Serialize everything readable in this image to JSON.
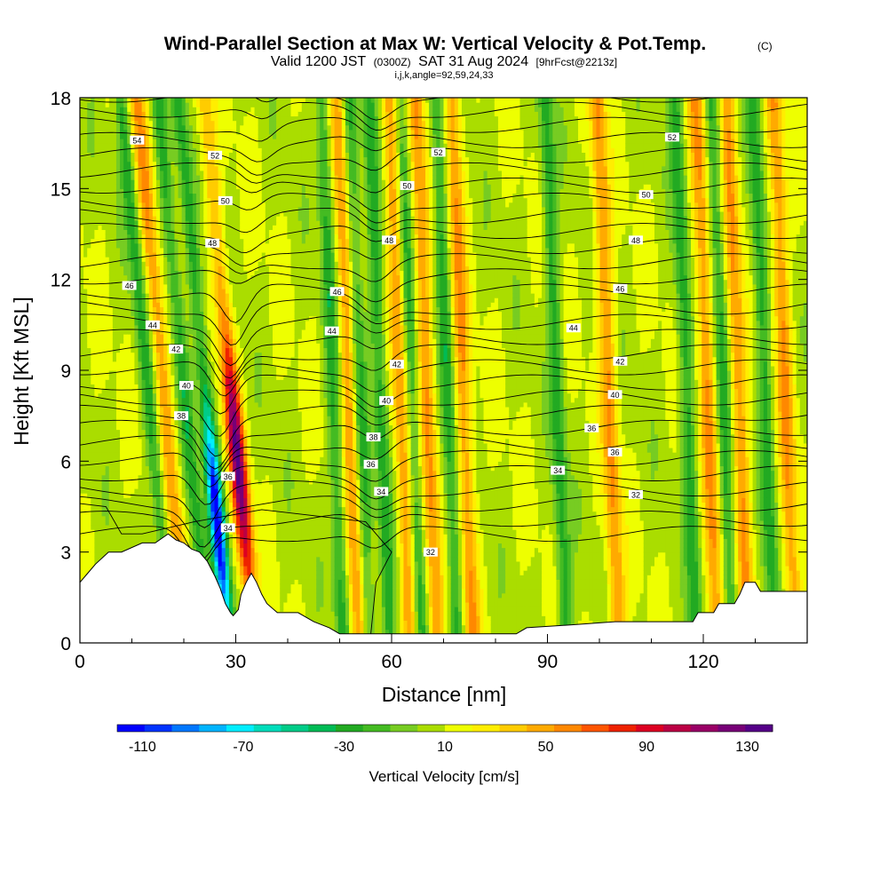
{
  "chart_data": {
    "type": "heatmap",
    "title": "Wind-Parallel Section at Max W: Vertical Velocity & Pot.Temp.",
    "title_mark": "(C)",
    "subtitle": {
      "valid_a": "Valid 1200 JST",
      "valid_b": "(0300Z)",
      "valid_c": "SAT 31 Aug 2024",
      "valid_d": "[9hrFcst@2213z]"
    },
    "subtitle2": "i,j,k,angle=92,59,24,33",
    "xlabel": "Distance [nm]",
    "ylabel": "Height [Kft MSL]",
    "xlim": [
      0,
      140
    ],
    "ylim": [
      0,
      18
    ],
    "x_ticks": [
      0,
      30,
      60,
      90,
      120
    ],
    "y_ticks": [
      0,
      3,
      6,
      9,
      12,
      15,
      18
    ],
    "colorbar": {
      "label": "Vertical Velocity [cm/s]",
      "min": -120,
      "max": 140,
      "tick_labels": [
        "-110",
        "-70",
        "-30",
        "10",
        "50",
        "90",
        "130"
      ],
      "tick_values": [
        -110,
        -70,
        -30,
        10,
        50,
        90,
        130
      ],
      "colors": [
        "#0000ff",
        "#0033ff",
        "#0077ff",
        "#00b4ff",
        "#00eeff",
        "#00ddbb",
        "#00cc88",
        "#00bb55",
        "#22aa22",
        "#44bb22",
        "#77cc22",
        "#aadd00",
        "#eeff00",
        "#ffee00",
        "#ffcc00",
        "#ffaa00",
        "#ff8800",
        "#ff5500",
        "#ee2200",
        "#dd0022",
        "#bb0044",
        "#990066",
        "#770077",
        "#550088"
      ]
    },
    "updraft_bands_x_nm": [
      19,
      32,
      53,
      63,
      68,
      75,
      103,
      122,
      128,
      137
    ],
    "downdraft_bands_x_nm": [
      16,
      23,
      27,
      50,
      55,
      59,
      65,
      72,
      93,
      118,
      125,
      133
    ],
    "theta_contour_labels_K": [
      {
        "label": "54",
        "x": 11,
        "y": 16.6
      },
      {
        "label": "52",
        "x": 26,
        "y": 16.1
      },
      {
        "label": "52",
        "x": 69,
        "y": 16.2
      },
      {
        "label": "52",
        "x": 114,
        "y": 16.7
      },
      {
        "label": "50",
        "x": 28,
        "y": 14.6
      },
      {
        "label": "50",
        "x": 63,
        "y": 15.1
      },
      {
        "label": "50",
        "x": 109,
        "y": 14.8
      },
      {
        "label": "48",
        "x": 25.5,
        "y": 13.2
      },
      {
        "label": "48",
        "x": 59.5,
        "y": 13.3
      },
      {
        "label": "48",
        "x": 107,
        "y": 13.3
      },
      {
        "label": "46",
        "x": 9.5,
        "y": 11.8
      },
      {
        "label": "46",
        "x": 49.5,
        "y": 11.6
      },
      {
        "label": "46",
        "x": 104,
        "y": 11.7
      },
      {
        "label": "44",
        "x": 14,
        "y": 10.5
      },
      {
        "label": "44",
        "x": 48.5,
        "y": 10.3
      },
      {
        "label": "44",
        "x": 95,
        "y": 10.4
      },
      {
        "label": "42",
        "x": 18.5,
        "y": 9.7
      },
      {
        "label": "42",
        "x": 61,
        "y": 9.2
      },
      {
        "label": "42",
        "x": 104,
        "y": 9.3
      },
      {
        "label": "40",
        "x": 20.5,
        "y": 8.5
      },
      {
        "label": "40",
        "x": 59,
        "y": 8.0
      },
      {
        "label": "40",
        "x": 103,
        "y": 8.2
      },
      {
        "label": "38",
        "x": 19.5,
        "y": 7.5
      },
      {
        "label": "38",
        "x": 56.5,
        "y": 6.8
      },
      {
        "label": "36",
        "x": 28.5,
        "y": 5.5
      },
      {
        "label": "36",
        "x": 56,
        "y": 5.9
      },
      {
        "label": "36",
        "x": 98.5,
        "y": 7.1
      },
      {
        "label": "36",
        "x": 103,
        "y": 6.3
      },
      {
        "label": "34",
        "x": 28.5,
        "y": 3.8
      },
      {
        "label": "34",
        "x": 58,
        "y": 5.0
      },
      {
        "label": "34",
        "x": 92,
        "y": 5.7
      },
      {
        "label": "32",
        "x": 107,
        "y": 4.9
      },
      {
        "label": "32",
        "x": 67.5,
        "y": 3.0
      }
    ],
    "terrain": [
      [
        0,
        2.0
      ],
      [
        1.5,
        2.3
      ],
      [
        3,
        2.6
      ],
      [
        5.5,
        3.0
      ],
      [
        8,
        3.0
      ],
      [
        12,
        3.3
      ],
      [
        14.5,
        3.3
      ],
      [
        17,
        3.6
      ],
      [
        18.5,
        3.4
      ],
      [
        20,
        3.3
      ],
      [
        21.5,
        3.1
      ],
      [
        23,
        3.0
      ],
      [
        24.5,
        2.7
      ],
      [
        26,
        2.2
      ],
      [
        27,
        1.8
      ],
      [
        28,
        1.3
      ],
      [
        29,
        1.0
      ],
      [
        29.5,
        0.9
      ],
      [
        30.5,
        1.1
      ],
      [
        31,
        1.6
      ],
      [
        32,
        2.0
      ],
      [
        33,
        2.3
      ],
      [
        34,
        2.0
      ],
      [
        35,
        1.6
      ],
      [
        36,
        1.3
      ],
      [
        38,
        1.0
      ],
      [
        42,
        1.0
      ],
      [
        45,
        0.7
      ],
      [
        48,
        0.5
      ],
      [
        50,
        0.3
      ],
      [
        84,
        0.3
      ],
      [
        86,
        0.5
      ],
      [
        95,
        0.6
      ],
      [
        103,
        0.7
      ],
      [
        118,
        0.7
      ],
      [
        119,
        1.0
      ],
      [
        122,
        1.0
      ],
      [
        123,
        1.3
      ],
      [
        126,
        1.3
      ],
      [
        127,
        1.6
      ],
      [
        128,
        2.0
      ],
      [
        130,
        2.0
      ],
      [
        131,
        1.7
      ],
      [
        140,
        1.7
      ]
    ]
  }
}
